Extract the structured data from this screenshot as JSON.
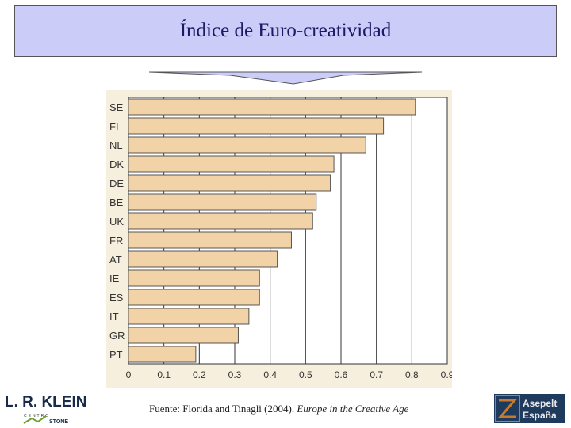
{
  "title": "Índice de Euro-creatividad",
  "source_text": "Fuente: Florida and Tinagli (2004). ",
  "source_italic": "Europe in the Creative Age",
  "logo_left": {
    "line1": "L. R. KLEIN",
    "line2": "CENTRO",
    "line3": "STONE"
  },
  "logo_right": {
    "line1": "Asepelt",
    "line2": "España"
  },
  "colors": {
    "title_bg": "#ccccf8",
    "title_text": "#1a1a66",
    "plot_bg": "#f6efdd",
    "bar": "#f2d3a8",
    "bar_edge": "#555555",
    "logo_right_bg": "#1e3b5e",
    "logo_right_accent": "#c77b2a"
  },
  "chart_data": {
    "type": "bar",
    "orientation": "horizontal",
    "categories": [
      "SE",
      "FI",
      "NL",
      "DK",
      "DE",
      "BE",
      "UK",
      "FR",
      "AT",
      "IE",
      "ES",
      "IT",
      "GR",
      "PT"
    ],
    "values": [
      0.81,
      0.72,
      0.67,
      0.58,
      0.57,
      0.53,
      0.52,
      0.46,
      0.42,
      0.37,
      0.37,
      0.34,
      0.31,
      0.19
    ],
    "x_ticks": [
      "0",
      "0.1",
      "0.2",
      "0.3",
      "0.4",
      "0.5",
      "0.6",
      "0.7",
      "0.8",
      "0.9"
    ],
    "xlim": [
      0,
      0.9
    ],
    "grid": "vertical",
    "title": "",
    "xlabel": "",
    "ylabel": ""
  }
}
